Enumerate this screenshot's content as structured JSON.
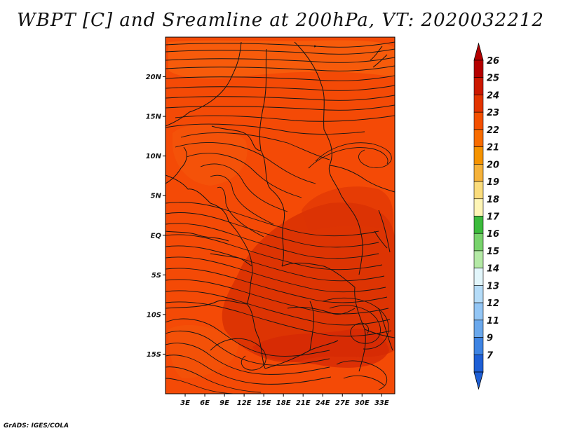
{
  "map": {
    "title": "WBPT [C] and Sreamline at 200hPa, VT: 2020032212",
    "credit": "GrADS: IGES/COLA",
    "variable": "Wet-bulb potential temperature",
    "level": "200hPa",
    "valid_time": "2020032212",
    "lon_range": [
      0,
      35
    ],
    "lat_range": [
      -20,
      25
    ],
    "lat_ticks": [
      {
        "value": 20,
        "label": "20N"
      },
      {
        "value": 15,
        "label": "15N"
      },
      {
        "value": 10,
        "label": "10N"
      },
      {
        "value": 5,
        "label": "5N"
      },
      {
        "value": 0,
        "label": "EQ"
      },
      {
        "value": -5,
        "label": "5S"
      },
      {
        "value": -10,
        "label": "10S"
      },
      {
        "value": -15,
        "label": "15S"
      }
    ],
    "lon_ticks": [
      {
        "value": 3,
        "label": "3E"
      },
      {
        "value": 6,
        "label": "6E"
      },
      {
        "value": 9,
        "label": "9E"
      },
      {
        "value": 12,
        "label": "12E"
      },
      {
        "value": 15,
        "label": "15E"
      },
      {
        "value": 18,
        "label": "18E"
      },
      {
        "value": 21,
        "label": "21E"
      },
      {
        "value": 24,
        "label": "24E"
      },
      {
        "value": 27,
        "label": "27E"
      },
      {
        "value": 30,
        "label": "30E"
      },
      {
        "value": 33,
        "label": "33E"
      }
    ],
    "field_colors": {
      "base": "#f44a06",
      "light": "#f86410",
      "dark": "#d42806",
      "outline": "#141414"
    }
  },
  "colorbar": {
    "levels": [
      "26",
      "25",
      "24",
      "23",
      "22",
      "21",
      "20",
      "19",
      "18",
      "17",
      "16",
      "15",
      "14",
      "13",
      "12",
      "11",
      "9",
      "7"
    ],
    "colors": [
      "#b40000",
      "#cc1800",
      "#e33400",
      "#f45000",
      "#f86c00",
      "#f59300",
      "#f5b23a",
      "#fadc7c",
      "#fef5b6",
      "#3cbb3c",
      "#78d36c",
      "#b4e9a6",
      "#e2f6fb",
      "#b5dcf8",
      "#93c6f5",
      "#6aa8ec",
      "#3e84e3",
      "#1e5fd6"
    ]
  }
}
